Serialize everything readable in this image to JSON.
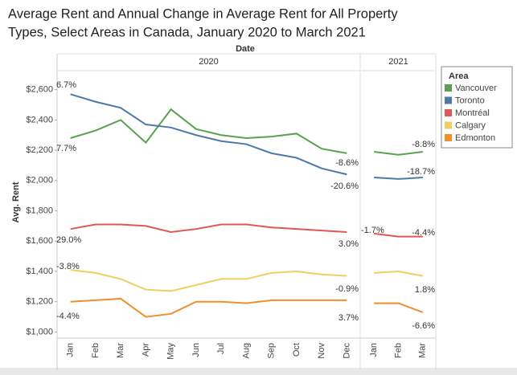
{
  "chart_data": {
    "type": "line",
    "title": [
      "Average Rent and Annual Change in Average Rent for All Property",
      "Types, Select Areas in Canada, January 2020 to March 2021"
    ],
    "x_label": "Date",
    "y_label": "Avg. Rent",
    "panels": [
      {
        "label": "2020",
        "categories": [
          "Jan",
          "Feb",
          "Mar",
          "Apr",
          "May",
          "Jun",
          "Jul",
          "Aug",
          "Sep",
          "Oct",
          "Nov",
          "Dec"
        ]
      },
      {
        "label": "2021",
        "categories": [
          "Jan",
          "Feb",
          "Mar"
        ]
      }
    ],
    "legend_title": "Area",
    "legend": "right",
    "grid": false,
    "ylim": [
      960,
      2720
    ],
    "yticks": [
      {
        "value": 1000,
        "label": "$1,000"
      },
      {
        "value": 1200,
        "label": "$1,200"
      },
      {
        "value": 1400,
        "label": "$1,400"
      },
      {
        "value": 1600,
        "label": "$1,600"
      },
      {
        "value": 1800,
        "label": "$1,800"
      },
      {
        "value": 2000,
        "label": "$2,000"
      },
      {
        "value": 2200,
        "label": "$2,200"
      },
      {
        "value": 2400,
        "label": "$2,400"
      },
      {
        "value": 2600,
        "label": "$2,600"
      }
    ],
    "series": [
      {
        "name": "Vancouver",
        "color": "#59a14f",
        "values": [
          [
            2280,
            2330,
            2400,
            2250,
            2470,
            2340,
            2300,
            2280,
            2290,
            2310,
            2210,
            2180
          ],
          [
            2190,
            2170,
            2190
          ]
        ]
      },
      {
        "name": "Toronto",
        "color": "#4e79a7",
        "values": [
          [
            2570,
            2520,
            2480,
            2370,
            2350,
            2300,
            2260,
            2240,
            2180,
            2150,
            2080,
            2040
          ],
          [
            2020,
            2010,
            2020
          ]
        ]
      },
      {
        "name": "Montréal",
        "color": "#e15759",
        "values": [
          [
            1680,
            1710,
            1710,
            1700,
            1660,
            1680,
            1710,
            1710,
            1690,
            1680,
            1670,
            1660
          ],
          [
            1650,
            1630,
            1630
          ]
        ]
      },
      {
        "name": "Calgary",
        "color": "#f1ce63",
        "values": [
          [
            1410,
            1390,
            1350,
            1280,
            1270,
            1310,
            1350,
            1350,
            1390,
            1400,
            1380,
            1370
          ],
          [
            1390,
            1400,
            1370
          ]
        ]
      },
      {
        "name": "Edmonton",
        "color": "#f28e2b",
        "values": [
          [
            1200,
            1210,
            1220,
            1100,
            1120,
            1200,
            1200,
            1190,
            1210,
            1210,
            1210,
            1210
          ],
          [
            1190,
            1190,
            1130
          ]
        ]
      }
    ],
    "annotations": [
      "6.7%",
      "7.7%",
      "-8.6%",
      "-20.6%",
      "-8.8%",
      "-18.7%",
      "29.0%",
      "3.0%",
      "-1.7%",
      "-4.4%",
      "-3.8%",
      "-0.9%",
      "1.8%",
      "-4.4%",
      "3.7%",
      "-6.6%"
    ]
  }
}
